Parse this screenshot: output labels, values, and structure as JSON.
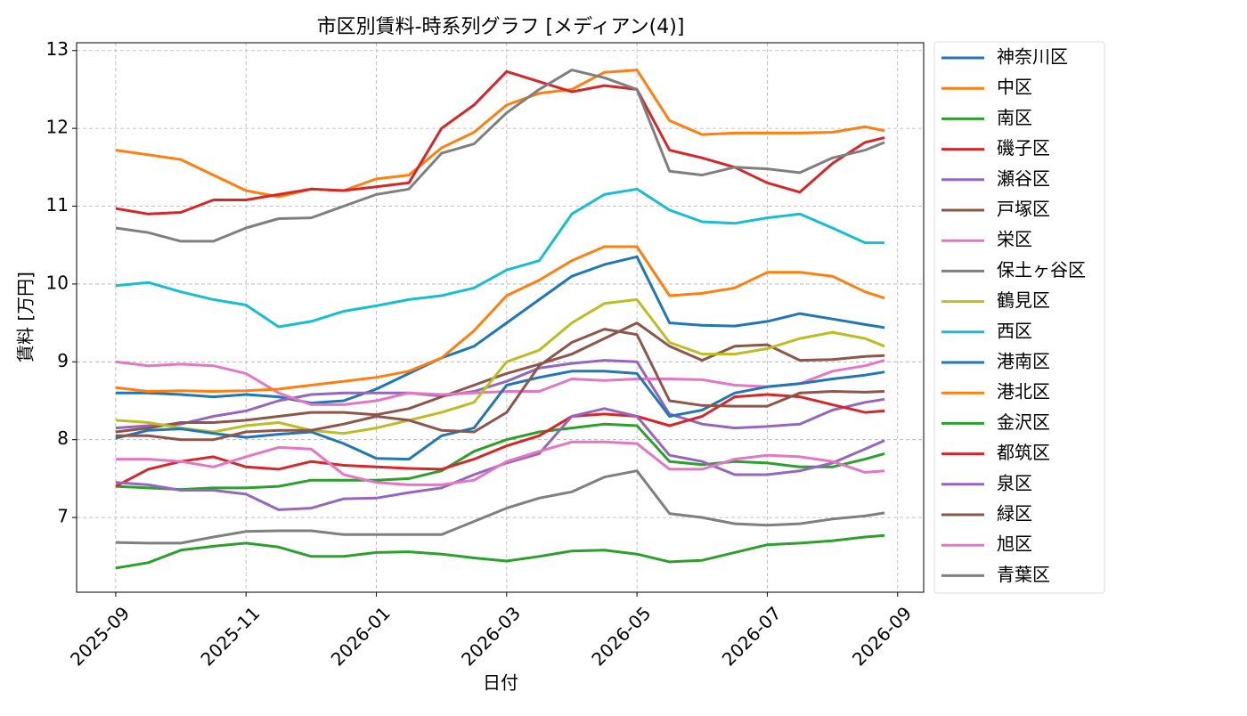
{
  "chart_data": {
    "type": "line",
    "title": "市区別賃料-時系列グラフ [メディアン(4)]",
    "xlabel": "日付",
    "ylabel": "賃料 [万円]",
    "x": [
      0,
      0.5,
      1,
      1.5,
      2,
      2.5,
      3,
      3.5,
      4,
      4.5,
      5,
      5.5,
      6,
      6.5,
      7,
      7.5,
      8,
      8.5,
      9,
      9.5,
      10,
      10.5,
      11,
      11.5,
      11.8
    ],
    "xlim": [
      -0.6,
      12.4
    ],
    "xticks": [
      {
        "value": 0,
        "label": "2025-09"
      },
      {
        "value": 2,
        "label": "2025-11"
      },
      {
        "value": 4,
        "label": "2026-01"
      },
      {
        "value": 6,
        "label": "2026-03"
      },
      {
        "value": 8,
        "label": "2026-05"
      },
      {
        "value": 10,
        "label": "2026-07"
      },
      {
        "value": 12,
        "label": "2026-09"
      }
    ],
    "ylim": [
      6.04,
      13.1
    ],
    "yticks": [
      7,
      8,
      9,
      10,
      11,
      12,
      13
    ],
    "grid": true,
    "legend": "outside right",
    "series": [
      {
        "name": "神奈川区",
        "color": "#1f77b4",
        "values": [
          8.6,
          8.6,
          8.58,
          8.55,
          8.58,
          8.55,
          8.47,
          8.5,
          8.65,
          8.85,
          9.05,
          9.2,
          9.5,
          9.8,
          10.1,
          10.25,
          10.35,
          9.5,
          9.47,
          9.46,
          9.52,
          9.62,
          9.55,
          9.48,
          9.44
        ]
      },
      {
        "name": "中区",
        "color": "#ff7f0e",
        "values": [
          11.72,
          11.66,
          11.6,
          11.4,
          11.2,
          11.12,
          11.22,
          11.2,
          11.35,
          11.4,
          11.75,
          11.95,
          12.3,
          12.45,
          12.5,
          12.72,
          12.75,
          12.1,
          11.92,
          11.94,
          11.94,
          11.94,
          11.95,
          12.02,
          11.97
        ]
      },
      {
        "name": "南区",
        "color": "#2ca02c",
        "values": [
          6.35,
          6.42,
          6.58,
          6.63,
          6.67,
          6.62,
          6.5,
          6.5,
          6.55,
          6.56,
          6.53,
          6.48,
          6.44,
          6.5,
          6.57,
          6.58,
          6.53,
          6.43,
          6.45,
          6.55,
          6.65,
          6.67,
          6.7,
          6.75,
          6.77
        ]
      },
      {
        "name": "磯子区",
        "color": "#d62728",
        "values": [
          10.97,
          10.9,
          10.92,
          11.08,
          11.08,
          11.15,
          11.22,
          11.2,
          11.25,
          11.3,
          12.0,
          12.3,
          12.73,
          12.6,
          12.47,
          12.55,
          12.5,
          11.72,
          11.62,
          11.5,
          11.3,
          11.18,
          11.55,
          11.82,
          11.88
        ]
      },
      {
        "name": "瀬谷区",
        "color": "#9467bd",
        "values": [
          8.15,
          8.18,
          8.2,
          8.3,
          8.37,
          8.5,
          8.58,
          8.6,
          8.6,
          8.6,
          8.56,
          8.62,
          8.75,
          8.92,
          8.98,
          9.02,
          9.0,
          8.33,
          8.2,
          8.15,
          8.17,
          8.2,
          8.38,
          8.48,
          8.52
        ]
      },
      {
        "name": "戸塚区",
        "color": "#8c564b",
        "values": [
          8.1,
          8.15,
          8.22,
          8.22,
          8.25,
          8.3,
          8.35,
          8.35,
          8.32,
          8.4,
          8.55,
          8.7,
          8.85,
          8.97,
          9.1,
          9.3,
          9.5,
          9.2,
          9.02,
          9.2,
          9.22,
          9.02,
          9.03,
          9.07,
          9.08
        ]
      },
      {
        "name": "栄区",
        "color": "#e377c2",
        "values": [
          9.0,
          8.95,
          8.97,
          8.95,
          8.85,
          8.6,
          8.45,
          8.45,
          8.5,
          8.6,
          8.58,
          8.6,
          8.62,
          8.62,
          8.78,
          8.76,
          8.78,
          8.78,
          8.77,
          8.7,
          8.68,
          8.72,
          8.88,
          8.95,
          9.02
        ]
      },
      {
        "name": "保土ヶ谷区",
        "color": "#7f7f7f",
        "values": [
          10.72,
          10.66,
          10.55,
          10.55,
          10.72,
          10.84,
          10.85,
          11.0,
          11.15,
          11.22,
          11.68,
          11.8,
          12.2,
          12.5,
          12.75,
          12.65,
          12.5,
          11.45,
          11.4,
          11.5,
          11.48,
          11.43,
          11.62,
          11.72,
          11.82
        ]
      },
      {
        "name": "鶴見区",
        "color": "#bcbd22",
        "values": [
          8.25,
          8.22,
          8.15,
          8.1,
          8.18,
          8.22,
          8.12,
          8.08,
          8.15,
          8.25,
          8.35,
          8.48,
          9.0,
          9.15,
          9.5,
          9.75,
          9.8,
          9.25,
          9.1,
          9.1,
          9.17,
          9.3,
          9.38,
          9.3,
          9.2
        ]
      },
      {
        "name": "西区",
        "color": "#17becf",
        "values": [
          9.98,
          10.02,
          9.9,
          9.8,
          9.73,
          9.45,
          9.52,
          9.65,
          9.72,
          9.8,
          9.85,
          9.95,
          10.18,
          10.3,
          10.9,
          11.15,
          11.22,
          10.95,
          10.8,
          10.78,
          10.85,
          10.9,
          10.72,
          10.53,
          10.53
        ]
      },
      {
        "name": "港南区",
        "color": "#1f77b4",
        "values": [
          8.02,
          8.12,
          8.14,
          8.08,
          8.03,
          8.07,
          8.1,
          7.95,
          7.76,
          7.75,
          8.05,
          8.15,
          8.7,
          8.8,
          8.88,
          8.88,
          8.85,
          8.3,
          8.38,
          8.6,
          8.68,
          8.72,
          8.78,
          8.83,
          8.87
        ]
      },
      {
        "name": "港北区",
        "color": "#ff7f0e",
        "values": [
          8.67,
          8.62,
          8.63,
          8.62,
          8.63,
          8.65,
          8.7,
          8.75,
          8.8,
          8.88,
          9.05,
          9.4,
          9.85,
          10.05,
          10.3,
          10.48,
          10.48,
          9.85,
          9.88,
          9.95,
          10.15,
          10.15,
          10.1,
          9.9,
          9.82
        ]
      },
      {
        "name": "金沢区",
        "color": "#2ca02c",
        "values": [
          7.4,
          7.38,
          7.36,
          7.38,
          7.38,
          7.4,
          7.48,
          7.48,
          7.48,
          7.5,
          7.6,
          7.85,
          8.0,
          8.1,
          8.15,
          8.2,
          8.18,
          7.72,
          7.68,
          7.72,
          7.7,
          7.65,
          7.65,
          7.75,
          7.82
        ]
      },
      {
        "name": "都筑区",
        "color": "#d62728",
        "values": [
          7.4,
          7.62,
          7.72,
          7.78,
          7.65,
          7.62,
          7.72,
          7.67,
          7.65,
          7.63,
          7.62,
          7.75,
          7.92,
          8.05,
          8.3,
          8.33,
          8.3,
          8.18,
          8.3,
          8.55,
          8.58,
          8.55,
          8.45,
          8.35,
          8.37
        ]
      },
      {
        "name": "泉区",
        "color": "#9467bd",
        "values": [
          7.45,
          7.42,
          7.35,
          7.35,
          7.3,
          7.1,
          7.12,
          7.24,
          7.25,
          7.32,
          7.38,
          7.55,
          7.7,
          7.82,
          8.3,
          8.4,
          8.3,
          7.8,
          7.72,
          7.55,
          7.55,
          7.6,
          7.7,
          7.88,
          7.99
        ]
      },
      {
        "name": "緑区",
        "color": "#8c564b",
        "values": [
          8.05,
          8.05,
          8.0,
          8.0,
          8.1,
          8.12,
          8.12,
          8.2,
          8.3,
          8.25,
          8.12,
          8.1,
          8.35,
          8.95,
          9.25,
          9.42,
          9.35,
          8.5,
          8.44,
          8.43,
          8.43,
          8.6,
          8.62,
          8.61,
          8.62
        ]
      },
      {
        "name": "旭区",
        "color": "#e377c2",
        "values": [
          7.75,
          7.75,
          7.72,
          7.65,
          7.78,
          7.9,
          7.88,
          7.55,
          7.45,
          7.42,
          7.42,
          7.48,
          7.72,
          7.85,
          7.97,
          7.97,
          7.95,
          7.62,
          7.62,
          7.75,
          7.8,
          7.78,
          7.72,
          7.58,
          7.6
        ]
      },
      {
        "name": "青葉区",
        "color": "#7f7f7f",
        "values": [
          6.68,
          6.67,
          6.67,
          6.75,
          6.82,
          6.83,
          6.83,
          6.78,
          6.78,
          6.78,
          6.78,
          6.95,
          7.12,
          7.25,
          7.33,
          7.52,
          7.6,
          7.05,
          7.0,
          6.92,
          6.9,
          6.92,
          6.98,
          7.02,
          7.06
        ]
      }
    ]
  }
}
